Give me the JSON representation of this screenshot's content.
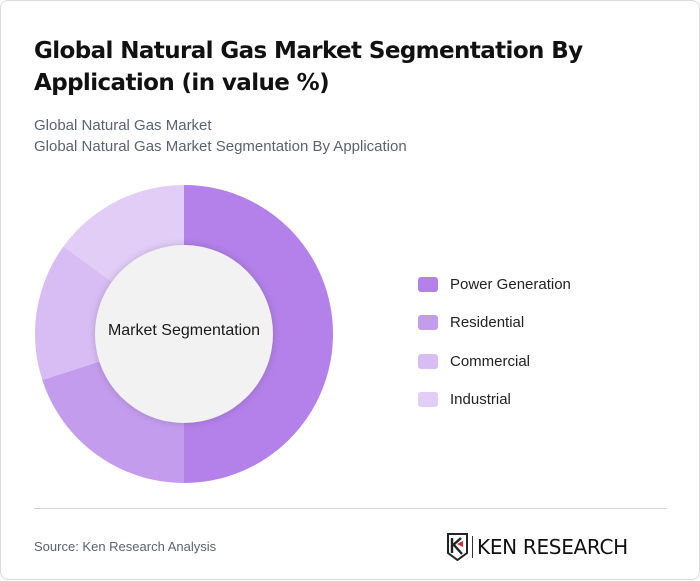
{
  "header": {
    "title": "Global Natural Gas Market Segmentation By Application (in value %)",
    "subtitle_line1": "Global Natural Gas Market",
    "subtitle_line2": "Global Natural Gas Market Segmentation By Application"
  },
  "chart": {
    "center_label": "Market Segmentation"
  },
  "legend": {
    "items": [
      {
        "label": "Power Generation",
        "color": "#b381e9"
      },
      {
        "label": "Residential",
        "color": "#c49cee"
      },
      {
        "label": "Commercial",
        "color": "#d8bdf5"
      },
      {
        "label": "Industrial",
        "color": "#e2cdf7"
      }
    ]
  },
  "footer": {
    "source": "Source: Ken Research Analysis",
    "logo_text": "KEN RESEARCH"
  },
  "chart_data": {
    "type": "pie",
    "variant": "donut",
    "title": "Global Natural Gas Market Segmentation By Application (in value %)",
    "subtitle": "Global Natural Gas Market Segmentation By Application",
    "center_label": "Market Segmentation",
    "categories": [
      "Power Generation",
      "Residential",
      "Commercial",
      "Industrial"
    ],
    "values": [
      50,
      20,
      15,
      15
    ],
    "colors": [
      "#b381e9",
      "#c49cee",
      "#d8bdf5",
      "#e2cdf7"
    ],
    "unit": "%",
    "legend_position": "right"
  }
}
